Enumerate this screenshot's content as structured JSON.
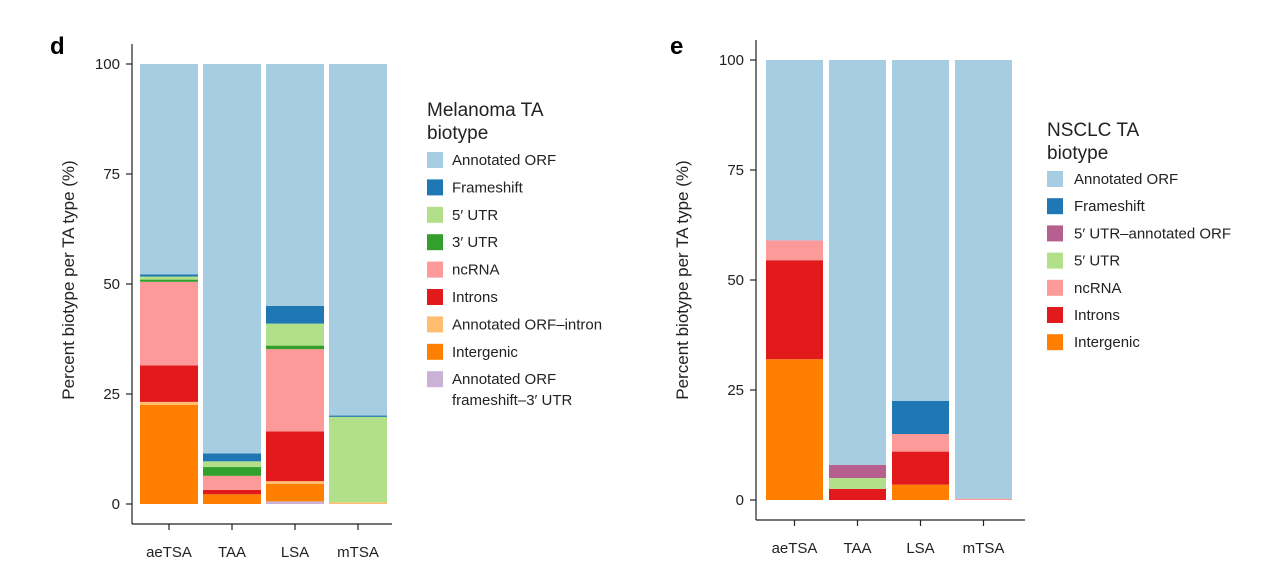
{
  "colors": {
    "Annotated ORF": "#a6cde2",
    "Frameshift": "#1f78b4",
    "5' UTR": "#b2df8a",
    "3' UTR": "#33a02c",
    "ncRNA": "#fb9a99",
    "Introns": "#e31a1c",
    "Annotated ORF–intron": "#fdbf6f",
    "Intergenic": "#ff7f00",
    "Annotated ORF frameshift–3′ UTR": "#cab2d6",
    "5′ UTR–annotated ORF": "#b5608e"
  },
  "chart_data": [
    {
      "panel": "d",
      "type": "bar",
      "stacked": true,
      "ylabel": "Percent biotype per TA type (%)",
      "ylim": [
        0,
        100
      ],
      "yticks": [
        0,
        25,
        50,
        75,
        100
      ],
      "categories": [
        "aeTSA",
        "TAA",
        "LSA",
        "mTSA"
      ],
      "legend_title": [
        "Melanoma TA",
        "biotype"
      ],
      "legend": [
        {
          "key": "Annotated ORF",
          "lines": [
            "Annotated ORF"
          ]
        },
        {
          "key": "Frameshift",
          "lines": [
            "Frameshift"
          ]
        },
        {
          "key": "5' UTR",
          "lines": [
            "5′ UTR"
          ]
        },
        {
          "key": "3' UTR",
          "lines": [
            "3′ UTR"
          ]
        },
        {
          "key": "ncRNA",
          "lines": [
            "ncRNA"
          ]
        },
        {
          "key": "Introns",
          "lines": [
            "Introns"
          ]
        },
        {
          "key": "Annotated ORF–intron",
          "lines": [
            "Annotated ORF–intron"
          ]
        },
        {
          "key": "Intergenic",
          "lines": [
            "Intergenic"
          ]
        },
        {
          "key": "Annotated ORF frameshift–3′ UTR",
          "lines": [
            "Annotated ORF",
            "frameshift–3′ UTR"
          ]
        }
      ],
      "stacks": [
        [
          {
            "key": "Intergenic",
            "value": 22.5
          },
          {
            "key": "Annotated ORF–intron",
            "value": 0.7
          },
          {
            "key": "Introns",
            "value": 8.3
          },
          {
            "key": "ncRNA",
            "value": 19.0
          },
          {
            "key": "3' UTR",
            "value": 0.5
          },
          {
            "key": "5' UTR",
            "value": 0.7
          },
          {
            "key": "Frameshift",
            "value": 0.5
          },
          {
            "key": "Annotated ORF",
            "value": 47.8
          }
        ],
        [
          {
            "key": "Intergenic",
            "value": 2.2
          },
          {
            "key": "Introns",
            "value": 1.0
          },
          {
            "key": "ncRNA",
            "value": 3.2
          },
          {
            "key": "3' UTR",
            "value": 2.0
          },
          {
            "key": "5' UTR",
            "value": 1.3
          },
          {
            "key": "Frameshift",
            "value": 1.8
          },
          {
            "key": "Annotated ORF",
            "value": 88.5
          }
        ],
        [
          {
            "key": "Annotated ORF frameshift–3′ UTR",
            "value": 0.6
          },
          {
            "key": "Intergenic",
            "value": 4.0
          },
          {
            "key": "Annotated ORF–intron",
            "value": 0.6
          },
          {
            "key": "Introns",
            "value": 11.3
          },
          {
            "key": "ncRNA",
            "value": 18.7
          },
          {
            "key": "3' UTR",
            "value": 0.8
          },
          {
            "key": "5' UTR",
            "value": 5.0
          },
          {
            "key": "Frameshift",
            "value": 4.0
          },
          {
            "key": "Annotated ORF",
            "value": 55.0
          }
        ],
        [
          {
            "key": "Annotated ORF–intron",
            "value": 0.4
          },
          {
            "key": "5' UTR",
            "value": 19.4
          },
          {
            "key": "Frameshift",
            "value": 0.3
          },
          {
            "key": "Annotated ORF",
            "value": 79.9
          }
        ]
      ]
    },
    {
      "panel": "e",
      "type": "bar",
      "stacked": true,
      "ylabel": "Percent biotype per TA type (%)",
      "ylim": [
        0,
        100
      ],
      "yticks": [
        0,
        25,
        50,
        75,
        100
      ],
      "categories": [
        "aeTSA",
        "TAA",
        "LSA",
        "mTSA"
      ],
      "legend_title": [
        "NSCLC TA",
        "biotype"
      ],
      "legend": [
        {
          "key": "Annotated ORF",
          "lines": [
            "Annotated ORF"
          ]
        },
        {
          "key": "Frameshift",
          "lines": [
            "Frameshift"
          ]
        },
        {
          "key": "5′ UTR–annotated ORF",
          "lines": [
            "5′ UTR–annotated ORF"
          ]
        },
        {
          "key": "5' UTR",
          "lines": [
            "5′ UTR"
          ]
        },
        {
          "key": "ncRNA",
          "lines": [
            "ncRNA"
          ]
        },
        {
          "key": "Introns",
          "lines": [
            "Introns"
          ]
        },
        {
          "key": "Intergenic",
          "lines": [
            "Intergenic"
          ]
        }
      ],
      "stacks": [
        [
          {
            "key": "Intergenic",
            "value": 32.0
          },
          {
            "key": "Introns",
            "value": 22.5
          },
          {
            "key": "ncRNA",
            "value": 4.5
          },
          {
            "key": "Annotated ORF",
            "value": 41.0
          }
        ],
        [
          {
            "key": "Introns",
            "value": 2.5
          },
          {
            "key": "5' UTR",
            "value": 2.5
          },
          {
            "key": "5′ UTR–annotated ORF",
            "value": 3.0
          },
          {
            "key": "Annotated ORF",
            "value": 92.0
          }
        ],
        [
          {
            "key": "Intergenic",
            "value": 3.5
          },
          {
            "key": "Introns",
            "value": 7.5
          },
          {
            "key": "ncRNA",
            "value": 4.0
          },
          {
            "key": "Frameshift",
            "value": 7.5
          },
          {
            "key": "Annotated ORF",
            "value": 77.5
          }
        ],
        [
          {
            "key": "ncRNA",
            "value": 0.3
          },
          {
            "key": "Annotated ORF",
            "value": 99.7
          }
        ]
      ]
    }
  ]
}
